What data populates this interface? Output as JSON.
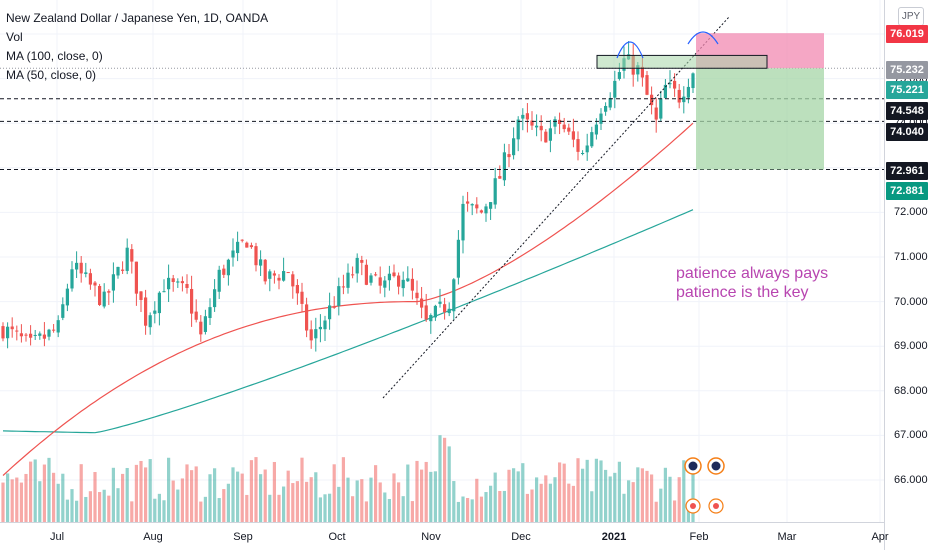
{
  "chart_data": {
    "type": "candlestick",
    "title": "New Zealand Dollar / Japanese Yen, 1D, OANDA",
    "currency": "JPY",
    "indicators": [
      "Vol",
      "MA (100, close, 0)",
      "MA (50, close, 0)"
    ],
    "y_ticks": [
      "76.000",
      "75.000",
      "74.000",
      "73.000",
      "72.000",
      "71.000",
      "70.000",
      "69.000",
      "68.000",
      "67.000",
      "66.000"
    ],
    "ylim": [
      65.6,
      76.5
    ],
    "x_ticks": [
      {
        "label": "Jul",
        "bold": false
      },
      {
        "label": "Aug",
        "bold": false
      },
      {
        "label": "Sep",
        "bold": false
      },
      {
        "label": "Oct",
        "bold": false
      },
      {
        "label": "Nov",
        "bold": false
      },
      {
        "label": "Dec",
        "bold": false
      },
      {
        "label": "2021",
        "bold": true
      },
      {
        "label": "Feb",
        "bold": false
      },
      {
        "label": "Mar",
        "bold": false
      },
      {
        "label": "Apr",
        "bold": false
      }
    ],
    "price_tags": [
      {
        "value": "76.019",
        "bg": "#f23645",
        "fg": "#ffffff"
      },
      {
        "value": "75.232",
        "bg": "#9598a1",
        "fg": "#ffffff"
      },
      {
        "value": "75.221",
        "bg": "#26a69a",
        "fg": "#ffffff"
      },
      {
        "value": "74.548",
        "bg": "#131722",
        "fg": "#ffffff"
      },
      {
        "value": "74.040",
        "bg": "#131722",
        "fg": "#ffffff"
      },
      {
        "value": "72.961",
        "bg": "#131722",
        "fg": "#ffffff"
      },
      {
        "value": "72.881",
        "bg": "#089981",
        "fg": "#ffffff"
      }
    ],
    "horizontal_levels": [
      74.548,
      74.04,
      72.961
    ],
    "trade": {
      "entry": 75.232,
      "stop": 76.019,
      "target": 72.961
    },
    "resistance_zone": [
      75.232,
      75.52
    ],
    "annotations": [
      "patience always pays",
      "patience is the key"
    ],
    "colors": {
      "up": "#26a69a",
      "down": "#ef5350",
      "ma50": "#ef5350",
      "ma100": "#26a69a",
      "note": "#b845b0",
      "loss": "#f28ab2",
      "profit": "#a5d6a7"
    }
  }
}
